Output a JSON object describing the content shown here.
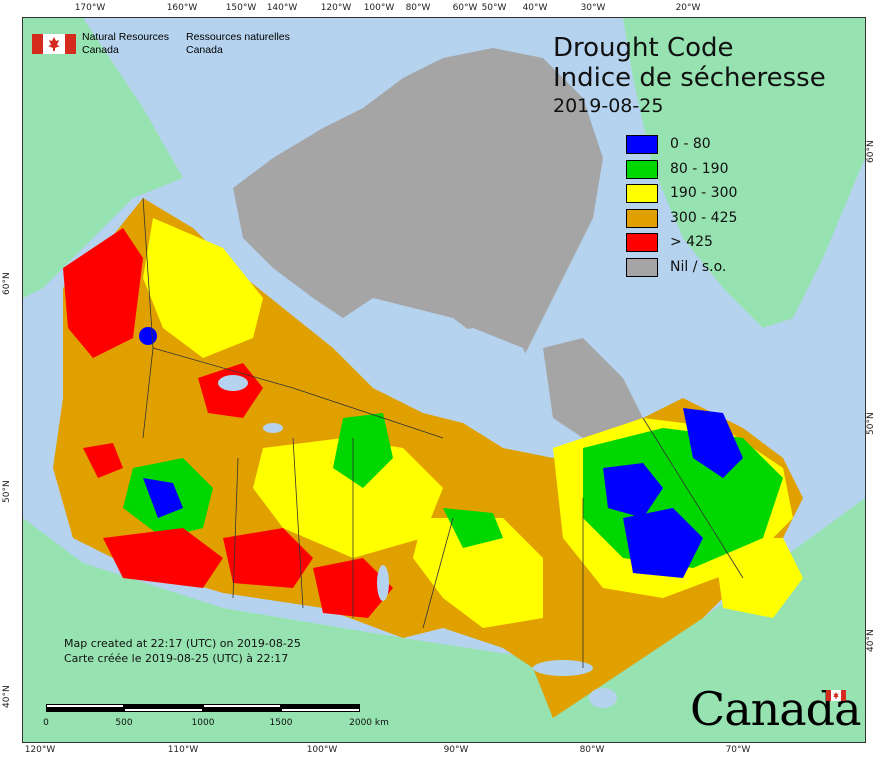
{
  "header": {
    "org_en_line1": "Natural Resources",
    "org_en_line2": "Canada",
    "org_fr_line1": "Ressources naturelles",
    "org_fr_line2": "Canada"
  },
  "title": {
    "en": "Drought Code",
    "fr": "Indice de sécheresse",
    "date": "2019-08-25"
  },
  "legend": [
    {
      "label": "0 - 80",
      "color": "#0000ff"
    },
    {
      "label": "80 - 190",
      "color": "#00d600"
    },
    {
      "label": "190 - 300",
      "color": "#ffff00"
    },
    {
      "label": "300 - 425",
      "color": "#e0a000"
    },
    {
      "label": "> 425",
      "color": "#ff0000"
    },
    {
      "label": "Nil / s.o.",
      "color": "#a5a5a5"
    }
  ],
  "credits": {
    "en": "Map created at 22:17 (UTC) on 2019-08-25",
    "fr": "Carte créée le 2019-08-25 (UTC) à 22:17"
  },
  "scale": {
    "labels": [
      "0",
      "500",
      "1000",
      "1500",
      "2000 km"
    ]
  },
  "wordmark": "Canada",
  "graticule": {
    "top": [
      "170°W",
      "160°W",
      "150°W",
      "140°W",
      "120°W",
      "100°W",
      "80°W",
      "60°W",
      "50°W",
      "40°W",
      "30°W",
      "20°W"
    ],
    "bottom": [
      "120°W",
      "110°W",
      "100°W",
      "90°W",
      "80°W",
      "70°W"
    ],
    "left": [
      "60°N",
      "50°N",
      "40°N"
    ],
    "right": [
      "60°N",
      "50°N",
      "40°N"
    ]
  },
  "colors": {
    "water": "#b5d3ee",
    "land_outside": "#96e2b0",
    "nil": "#a5a5a5",
    "flag_red": "#d52b1e"
  }
}
